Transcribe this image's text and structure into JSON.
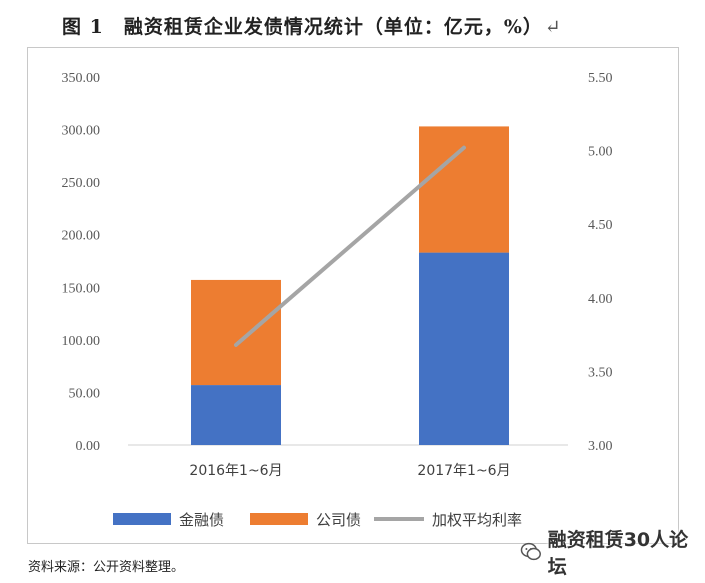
{
  "figure": {
    "title": "图 1　融资租赁企业发债情况统计（单位：亿元，%）",
    "return_mark": "↵",
    "source": "资料来源：公开资料整理。",
    "watermark": "融资租赁30人论坛"
  },
  "chart_data": {
    "type": "bar",
    "stacked": true,
    "categories": [
      "2016年1~6月",
      "2017年1~6月"
    ],
    "series": [
      {
        "name": "金融债",
        "type": "bar",
        "axis": "left",
        "color": "#4472c4",
        "values": [
          57,
          183
        ]
      },
      {
        "name": "公司债",
        "type": "bar",
        "axis": "left",
        "color": "#ed7d31",
        "values": [
          100,
          120
        ]
      },
      {
        "name": "加权平均利率",
        "type": "line",
        "axis": "right",
        "color": "#a5a5a5",
        "values": [
          3.68,
          5.02
        ]
      }
    ],
    "y_left": {
      "min": 0,
      "max": 350,
      "step": 50,
      "ticks": [
        "0.00",
        "50.00",
        "100.00",
        "150.00",
        "200.00",
        "250.00",
        "300.00",
        "350.00"
      ]
    },
    "y_right": {
      "min": 3.0,
      "max": 5.5,
      "step": 0.5,
      "ticks": [
        "3.00",
        "3.50",
        "4.00",
        "4.50",
        "5.00",
        "5.50"
      ]
    },
    "grid": false,
    "legend_position": "bottom"
  }
}
